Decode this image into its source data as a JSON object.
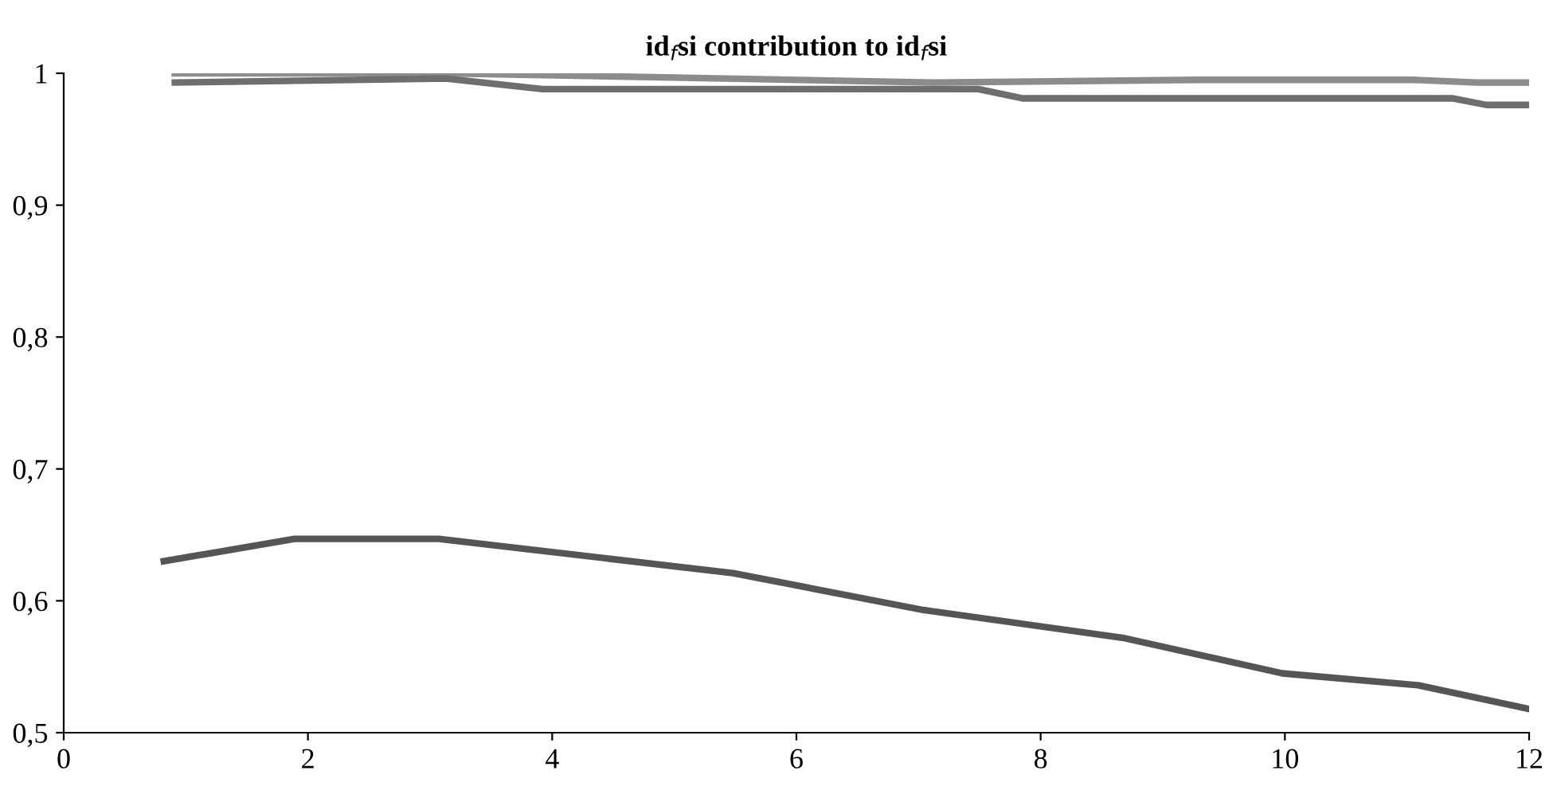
{
  "chart_data": {
    "type": "line",
    "title": "id$_{f}$si contribution to id$_{f}$si",
    "xlim": [
      0,
      12
    ],
    "xticks": [
      0,
      2,
      4,
      6,
      8,
      10,
      12
    ],
    "ylim": [
      0.5,
      1
    ],
    "yticks": [
      {
        "value": 0.5,
        "label": "0,5"
      },
      {
        "value": 0.6,
        "label": "0,6"
      },
      {
        "value": 0.7,
        "label": "0,7"
      },
      {
        "value": 0.8,
        "label": "0,8"
      },
      {
        "value": 0.9,
        "label": "0,9"
      },
      1
    ],
    "grid": false,
    "legend": false,
    "line_style": "solid",
    "series": [
      {
        "color": "#8c8c8c",
        "x": [
          0.91,
          3.13,
          7.12,
          9.29,
          11.06,
          11.57,
          12.0
        ],
        "values": [
          1.0,
          1.0,
          0.993,
          0.995,
          0.995,
          0.993,
          0.993
        ]
      },
      {
        "color": "#6e6e6e",
        "x": [
          0.91,
          3.13,
          3.92,
          7.49,
          7.85,
          11.37,
          11.65,
          12.0
        ],
        "values": [
          0.993,
          0.996,
          0.988,
          0.988,
          0.981,
          0.981,
          0.976,
          0.976
        ]
      },
      {
        "color": "#555555",
        "x": [
          0.82,
          1.89,
          3.07,
          5.48,
          7.04,
          8.67,
          9.98,
          11.09,
          12.0
        ],
        "values": [
          0.63,
          0.647,
          0.647,
          0.621,
          0.593,
          0.572,
          0.545,
          0.536,
          0.518
        ]
      }
    ]
  }
}
